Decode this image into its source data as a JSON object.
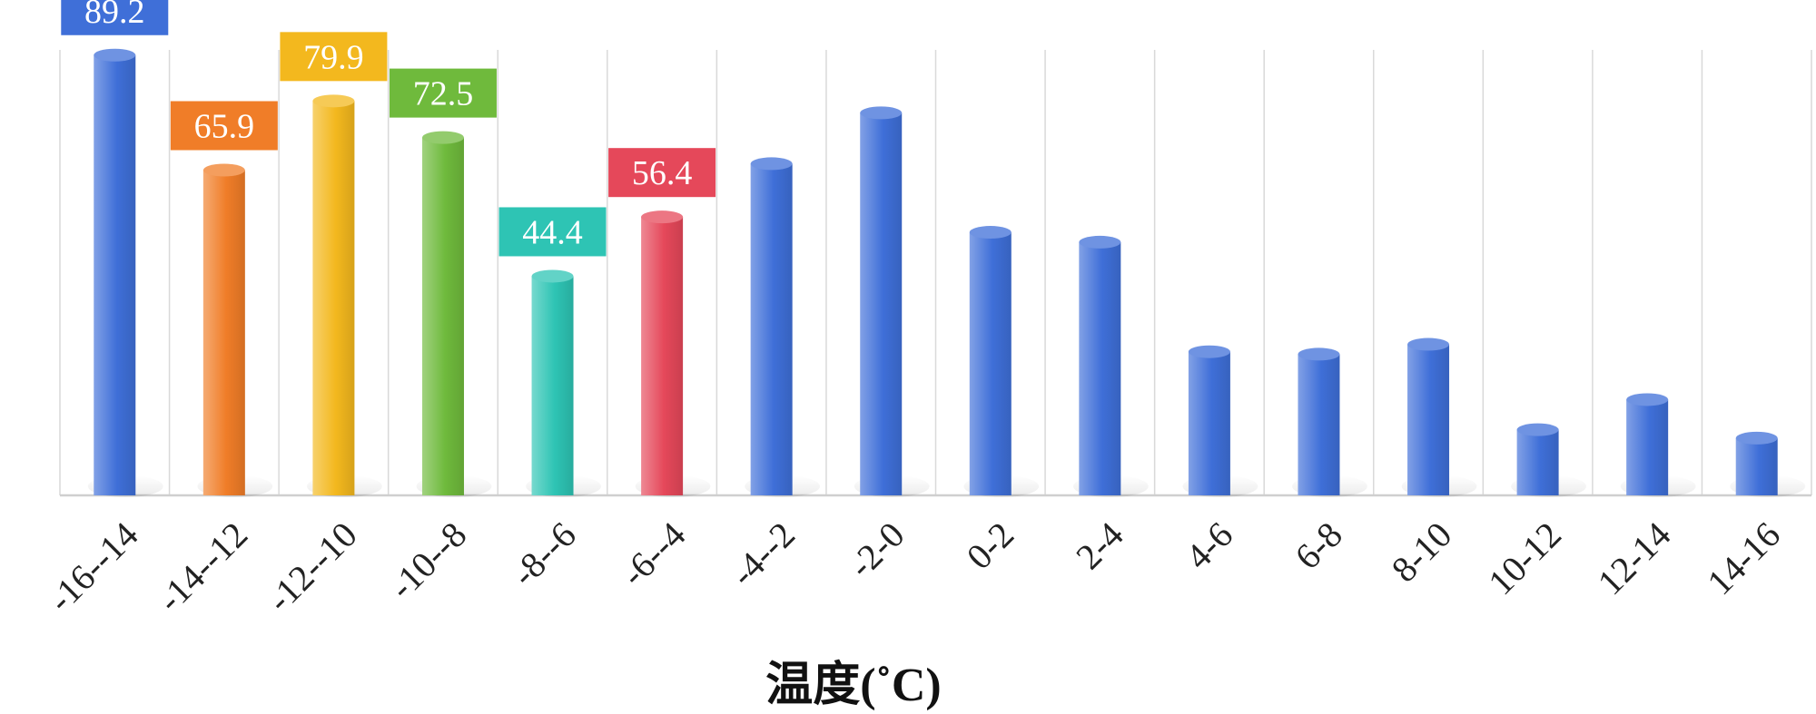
{
  "chart_data": {
    "type": "bar",
    "title": "",
    "xlabel": "温度(˚C)",
    "ylabel": "",
    "ylim": [
      0,
      100
    ],
    "grid": "vertical",
    "categories": [
      "-16--14",
      "-14--12",
      "-12--10",
      "-10--8",
      "-8--6",
      "-6--4",
      "-4--2",
      "-2-0",
      "0-2",
      "2-4",
      "4-6",
      "6-8",
      "8-10",
      "10-12",
      "12-14",
      "14-16"
    ],
    "values": [
      89.2,
      65.9,
      79.9,
      72.5,
      44.4,
      56.4,
      67.2,
      77.5,
      53.3,
      51.3,
      29.1,
      28.6,
      30.6,
      13.3,
      19.4,
      11.6
    ],
    "labels": [
      "89.2",
      "65.9",
      "79.9",
      "72.5",
      "44.4",
      "56.4",
      "",
      "",
      "",
      "",
      "",
      "",
      "",
      "",
      "",
      ""
    ],
    "colors": [
      "#3f6fd8",
      "#f07d28",
      "#f3b81e",
      "#6fba3c",
      "#2ec4b4",
      "#e5485a",
      "#3f6fd8",
      "#3f6fd8",
      "#3f6fd8",
      "#3f6fd8",
      "#3f6fd8",
      "#3f6fd8",
      "#3f6fd8",
      "#3f6fd8",
      "#3f6fd8",
      "#3f6fd8"
    ]
  }
}
